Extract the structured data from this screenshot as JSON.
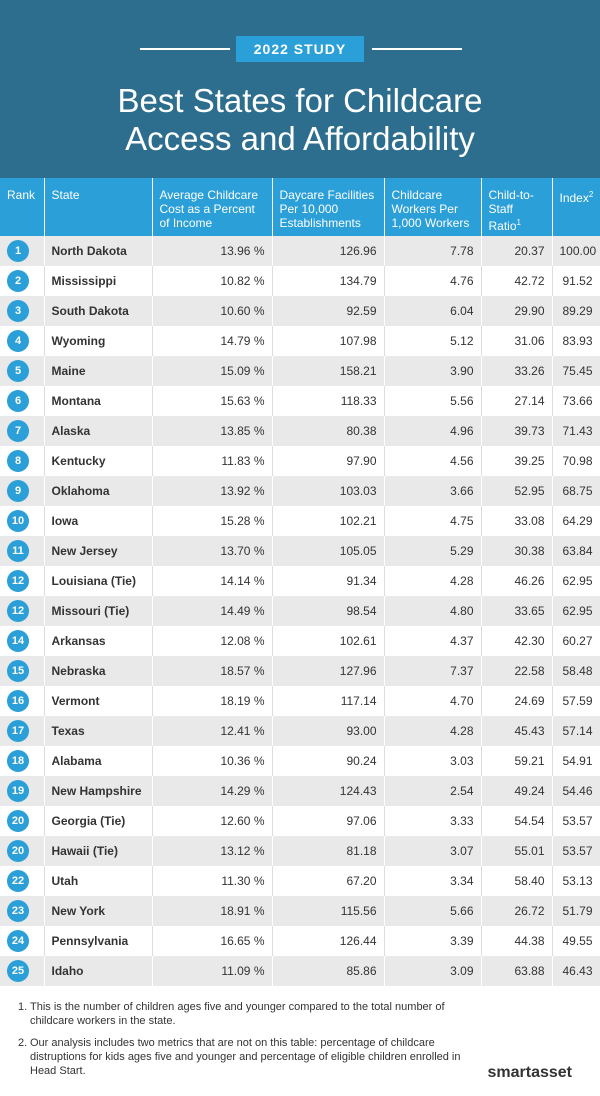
{
  "header": {
    "badge": "2022 STUDY",
    "title": [
      "Best States for Childcare",
      "Access and Affordability"
    ]
  },
  "table": {
    "columns": [
      {
        "text": "Rank"
      },
      {
        "text": "State"
      },
      {
        "text": "Average Childcare Cost as a Percent of Income"
      },
      {
        "text": "Daycare Facilities Per 10,000 Establishments"
      },
      {
        "text": "Childcare Workers Per 1,000 Workers"
      },
      {
        "text": "Child-to-Staff Ratio",
        "sup": "1"
      },
      {
        "text": "Index",
        "sup": "2"
      }
    ],
    "rows": [
      [
        "1",
        "North Dakota",
        "13.96 %",
        "126.96",
        "7.78",
        "20.37",
        "100.00"
      ],
      [
        "2",
        "Mississippi",
        "10.82 %",
        "134.79",
        "4.76",
        "42.72",
        "91.52"
      ],
      [
        "3",
        "South Dakota",
        "10.60 %",
        "92.59",
        "6.04",
        "29.90",
        "89.29"
      ],
      [
        "4",
        "Wyoming",
        "14.79 %",
        "107.98",
        "5.12",
        "31.06",
        "83.93"
      ],
      [
        "5",
        "Maine",
        "15.09 %",
        "158.21",
        "3.90",
        "33.26",
        "75.45"
      ],
      [
        "6",
        "Montana",
        "15.63 %",
        "118.33",
        "5.56",
        "27.14",
        "73.66"
      ],
      [
        "7",
        "Alaska",
        "13.85 %",
        "80.38",
        "4.96",
        "39.73",
        "71.43"
      ],
      [
        "8",
        "Kentucky",
        "11.83 %",
        "97.90",
        "4.56",
        "39.25",
        "70.98"
      ],
      [
        "9",
        "Oklahoma",
        "13.92 %",
        "103.03",
        "3.66",
        "52.95",
        "68.75"
      ],
      [
        "10",
        "Iowa",
        "15.28 %",
        "102.21",
        "4.75",
        "33.08",
        "64.29"
      ],
      [
        "11",
        "New Jersey",
        "13.70 %",
        "105.05",
        "5.29",
        "30.38",
        "63.84"
      ],
      [
        "12",
        "Louisiana (Tie)",
        "14.14 %",
        "91.34",
        "4.28",
        "46.26",
        "62.95"
      ],
      [
        "12",
        "Missouri (Tie)",
        "14.49 %",
        "98.54",
        "4.80",
        "33.65",
        "62.95"
      ],
      [
        "14",
        "Arkansas",
        "12.08 %",
        "102.61",
        "4.37",
        "42.30",
        "60.27"
      ],
      [
        "15",
        "Nebraska",
        "18.57 %",
        "127.96",
        "7.37",
        "22.58",
        "58.48"
      ],
      [
        "16",
        "Vermont",
        "18.19 %",
        "117.14",
        "4.70",
        "24.69",
        "57.59"
      ],
      [
        "17",
        "Texas",
        "12.41 %",
        "93.00",
        "4.28",
        "45.43",
        "57.14"
      ],
      [
        "18",
        "Alabama",
        "10.36 %",
        "90.24",
        "3.03",
        "59.21",
        "54.91"
      ],
      [
        "19",
        "New Hampshire",
        "14.29 %",
        "124.43",
        "2.54",
        "49.24",
        "54.46"
      ],
      [
        "20",
        "Georgia (Tie)",
        "12.60 %",
        "97.06",
        "3.33",
        "54.54",
        "53.57"
      ],
      [
        "20",
        "Hawaii (Tie)",
        "13.12 %",
        "81.18",
        "3.07",
        "55.01",
        "53.57"
      ],
      [
        "22",
        "Utah",
        "11.30 %",
        "67.20",
        "3.34",
        "58.40",
        "53.13"
      ],
      [
        "23",
        "New York",
        "18.91 %",
        "115.56",
        "5.66",
        "26.72",
        "51.79"
      ],
      [
        "24",
        "Pennsylvania",
        "16.65 %",
        "126.44",
        "3.39",
        "44.38",
        "49.55"
      ],
      [
        "25",
        "Idaho",
        "11.09 %",
        "85.86",
        "3.09",
        "63.88",
        "46.43"
      ]
    ]
  },
  "footnotes": [
    {
      "number": "1.",
      "text": "This is the number of children ages five and younger compared to the total number of childcare workers in the state."
    },
    {
      "number": "2.",
      "text": "Our analysis includes two metrics that are not on this table: percentage of childcare distruptions for kids ages five and younger and percentage of eligible children enrolled in Head Start."
    }
  ],
  "logo": "smartasset"
}
